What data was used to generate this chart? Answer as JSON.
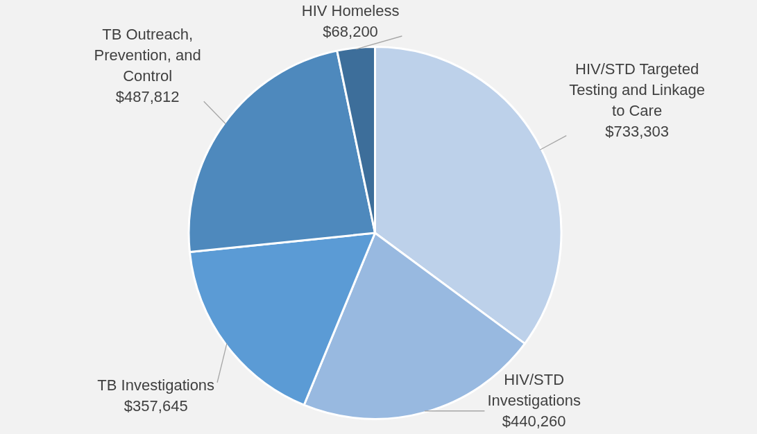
{
  "chart_data": {
    "type": "pie",
    "categories": [
      "HIV/STD Targeted Testing and Linkage to Care",
      "HIV/STD Investigations",
      "TB Investigations",
      "TB Outreach, Prevention, and Control",
      "HIV Homeless"
    ],
    "values": [
      733303,
      440260,
      357645,
      487812,
      68200
    ],
    "value_labels": [
      "$733,303",
      "$440,260",
      "$357,645",
      "$487,812",
      "$68,200"
    ],
    "colors": [
      "#bdd1ea",
      "#98b9e0",
      "#5b9bd5",
      "#4e89bd",
      "#3d6e9a"
    ],
    "legend": false
  }
}
